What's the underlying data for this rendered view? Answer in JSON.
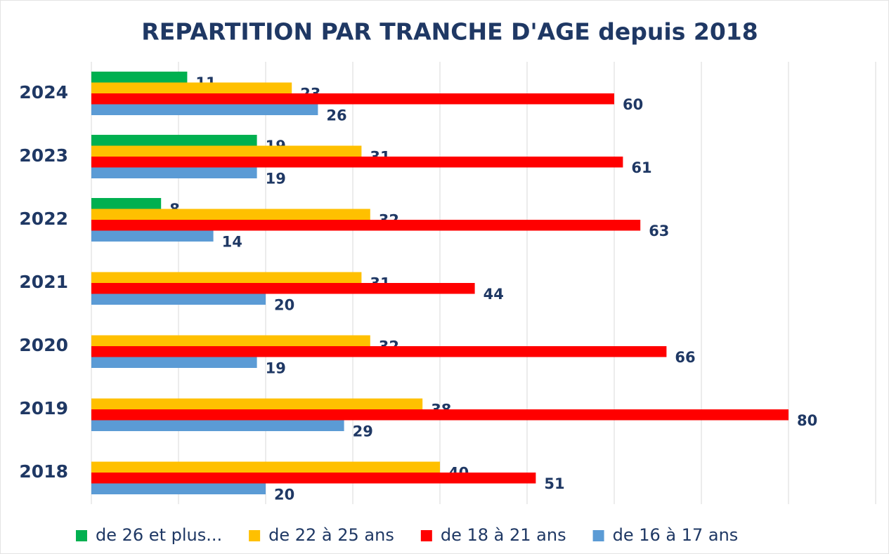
{
  "chart_data": {
    "type": "hbar",
    "title": "REPARTITION PAR TRANCHE D'AGE depuis 2018",
    "categories": [
      "2024",
      "2023",
      "2022",
      "2021",
      "2020",
      "2019",
      "2018"
    ],
    "series": [
      {
        "name": "de 26 et plus...",
        "color": "#00b050",
        "values": [
          11,
          19,
          8,
          null,
          null,
          null,
          null
        ]
      },
      {
        "name": "de 22 à 25 ans",
        "color": "#ffc000",
        "values": [
          23,
          31,
          32,
          31,
          32,
          38,
          40
        ]
      },
      {
        "name": "de 18 à 21 ans",
        "color": "#ff0000",
        "values": [
          60,
          61,
          63,
          44,
          66,
          80,
          51
        ]
      },
      {
        "name": "de 16 à 17 ans",
        "color": "#5b9bd5",
        "values": [
          26,
          19,
          14,
          20,
          19,
          29,
          20
        ]
      }
    ],
    "xlim": [
      0,
      90
    ],
    "xticks": [
      0,
      10,
      20,
      30,
      40,
      50,
      60,
      70,
      80,
      90
    ],
    "grid": true,
    "legend": "bottom"
  }
}
